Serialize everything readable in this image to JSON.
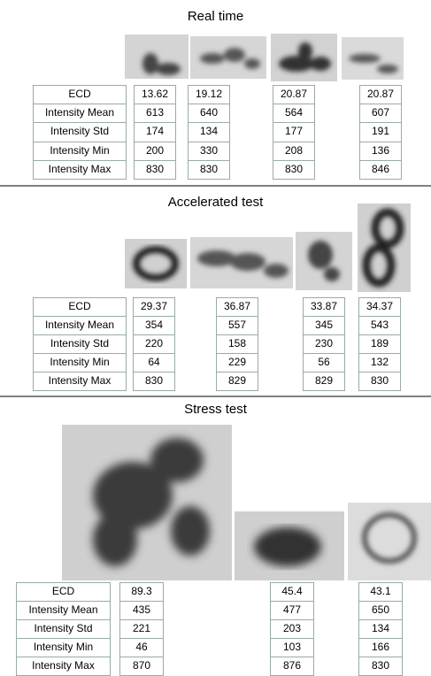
{
  "sections": [
    {
      "title": "Real time",
      "row_labels": [
        "ECD",
        "Intensity Mean",
        "Intensity Std",
        "Intensity Min",
        "Intensity Max"
      ],
      "columns": [
        [
          "13.62",
          "613",
          "174",
          "200",
          "830"
        ],
        [
          "19.12",
          "640",
          "134",
          "330",
          "830"
        ],
        [
          "20.87",
          "564",
          "177",
          "208",
          "830"
        ],
        [
          "20.87",
          "607",
          "191",
          "136",
          "846"
        ]
      ]
    },
    {
      "title": "Accelerated test",
      "row_labels": [
        "ECD",
        "Intensity Mean",
        "Intensity Std",
        "Intensity Min",
        "Intensity Max"
      ],
      "columns": [
        [
          "29.37",
          "354",
          "220",
          "64",
          "830"
        ],
        [
          "36.87",
          "557",
          "158",
          "229",
          "829"
        ],
        [
          "33.87",
          "345",
          "230",
          "56",
          "829"
        ],
        [
          "34.37",
          "543",
          "189",
          "132",
          "830"
        ]
      ]
    },
    {
      "title": "Stress test",
      "row_labels": [
        "ECD",
        "Intensity Mean",
        "Intensity Std",
        "Intensity Min",
        "Intensity Max"
      ],
      "columns": [
        [
          "89.3",
          "435",
          "221",
          "46",
          "870"
        ],
        [
          "45.4",
          "477",
          "203",
          "103",
          "876"
        ],
        [
          "43.1",
          "650",
          "134",
          "166",
          "830"
        ]
      ]
    }
  ]
}
